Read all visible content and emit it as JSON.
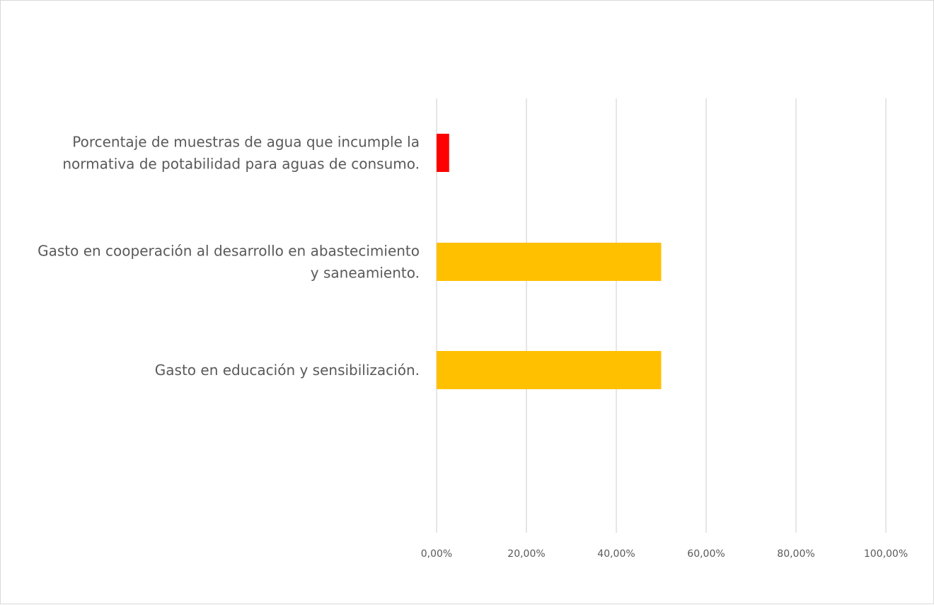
{
  "chart_data": {
    "type": "bar",
    "orientation": "horizontal",
    "categories": [
      [
        "Porcentaje de muestras de agua que incumple la",
        "normativa de potabilidad para aguas de consumo."
      ],
      [
        "Gasto en cooperación al desarrollo en abastecimiento",
        "y saneamiento."
      ],
      [
        "Gasto en educación y sensibilización."
      ]
    ],
    "values": [
      2.8,
      50,
      50
    ],
    "colors": [
      "#ff0000",
      "#ffc000",
      "#ffc000"
    ],
    "xlim": [
      0,
      100
    ],
    "xticks": [
      0,
      20,
      40,
      60,
      80,
      100
    ],
    "xtick_labels": [
      "0,00%",
      "20,00%",
      "40,00%",
      "60,00%",
      "80,00%",
      "100,00%"
    ],
    "grid": true,
    "gridline_color": "#d9d9d9",
    "title": "",
    "xlabel": "",
    "ylabel": ""
  }
}
